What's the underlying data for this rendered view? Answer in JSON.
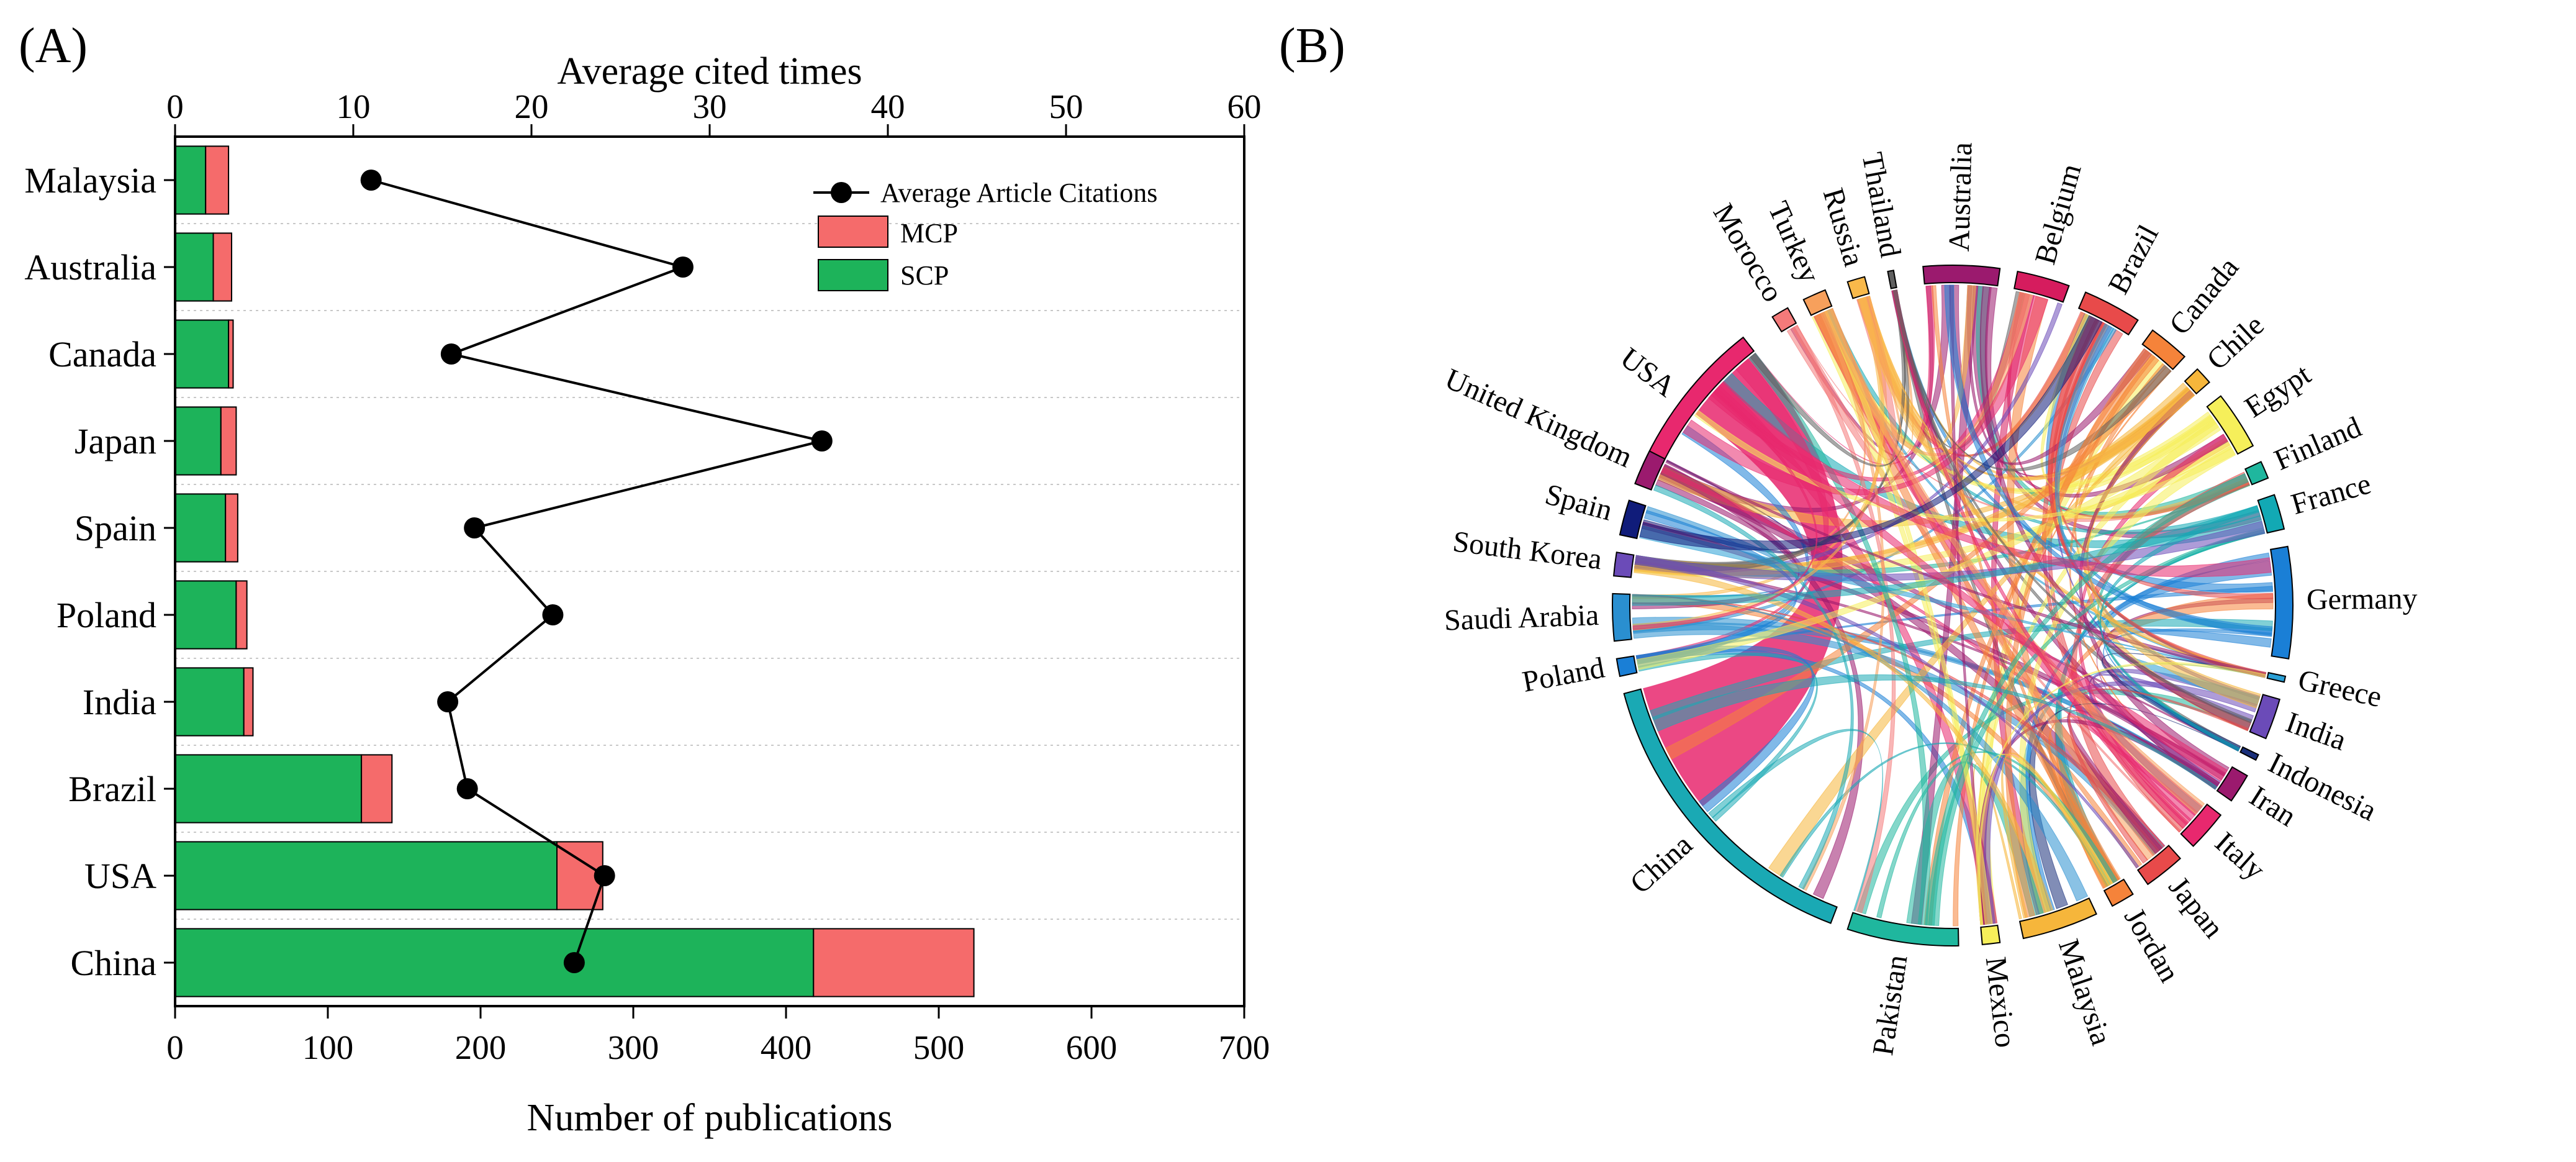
{
  "chart_data": [
    {
      "panel_label": "(A)",
      "type": "bar",
      "orientation": "horizontal",
      "stacked": true,
      "categories": [
        "Malaysia",
        "Australia",
        "Canada",
        "Japan",
        "Spain",
        "Poland",
        "India",
        "Brazil",
        "USA",
        "China"
      ],
      "series": [
        {
          "name": "SCP",
          "color": "#1db35a",
          "values": [
            20,
            25,
            35,
            30,
            33,
            40,
            45,
            122,
            250,
            418
          ]
        },
        {
          "name": "MCP",
          "color": "#f56b6b",
          "values": [
            15,
            12,
            3,
            10,
            8,
            7,
            6,
            20,
            30,
            105
          ]
        }
      ],
      "line_series": {
        "name": "Average Article Citations",
        "axis": "top",
        "values": [
          11,
          28.5,
          15.5,
          36.3,
          16.8,
          21.2,
          15.3,
          16.4,
          24.1,
          22.4
        ]
      },
      "xlabel": "Number of publications",
      "xlim": [
        0,
        700
      ],
      "xticks": [
        "0",
        "100",
        "200",
        "300",
        "400",
        "500",
        "600",
        "700"
      ],
      "x2label": "Average cited times",
      "x2lim": [
        0,
        60
      ],
      "x2ticks": [
        "0",
        "10",
        "20",
        "30",
        "40",
        "50",
        "60"
      ],
      "legend": [
        "Average Article Citations",
        "MCP",
        "SCP"
      ],
      "legend_position": "top-right",
      "grid": "horizontal-dotted"
    },
    {
      "panel_label": "(B)",
      "type": "chord",
      "segments": [
        {
          "name": "USA",
          "color": "#e8286e"
        },
        {
          "name": "Morocco",
          "color": "#f47a7a"
        },
        {
          "name": "Turkey",
          "color": "#f7a05c"
        },
        {
          "name": "Russia",
          "color": "#f9b94a"
        },
        {
          "name": "Thailand",
          "color": "#606060"
        },
        {
          "name": "Australia",
          "color": "#9b1a6e"
        },
        {
          "name": "Belgium",
          "color": "#d61c5e"
        },
        {
          "name": "Brazil",
          "color": "#e84a4a"
        },
        {
          "name": "Canada",
          "color": "#f5833a"
        },
        {
          "name": "Chile",
          "color": "#f6b63b"
        },
        {
          "name": "Egypt",
          "color": "#f6ef5a"
        },
        {
          "name": "Finland",
          "color": "#1fb79e"
        },
        {
          "name": "France",
          "color": "#12a9b4"
        },
        {
          "name": "Germany",
          "color": "#1a7fd6"
        },
        {
          "name": "Greece",
          "color": "#2aa0d6"
        },
        {
          "name": "India",
          "color": "#6b4bb8"
        },
        {
          "name": "Indonesia",
          "color": "#1a2f7a"
        },
        {
          "name": "Iran",
          "color": "#9b1a6e"
        },
        {
          "name": "Italy",
          "color": "#e8286e"
        },
        {
          "name": "Japan",
          "color": "#e84a4a"
        },
        {
          "name": "Jordan",
          "color": "#f5833a"
        },
        {
          "name": "Malaysia",
          "color": "#f6b63b"
        },
        {
          "name": "Mexico",
          "color": "#f6ef5a"
        },
        {
          "name": "Pakistan",
          "color": "#1fb79e"
        },
        {
          "name": "China",
          "color": "#1aa9b4"
        },
        {
          "name": "Poland",
          "color": "#1a7fd6"
        },
        {
          "name": "Saudi Arabia",
          "color": "#2a8fd0"
        },
        {
          "name": "South Korea",
          "color": "#6b4bb8"
        },
        {
          "name": "Spain",
          "color": "#101c7a"
        },
        {
          "name": "United Kingdom",
          "color": "#9b1a6e"
        }
      ]
    }
  ]
}
